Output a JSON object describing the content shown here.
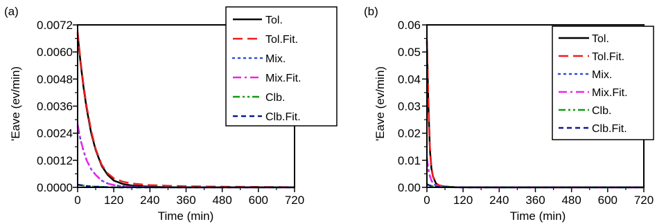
{
  "chart_data": [
    {
      "type": "line",
      "panel_label": "(a)",
      "xlabel": "Time (min)",
      "ylabel": "'Eave (ev/min)",
      "xlim": [
        0,
        720
      ],
      "ylim": [
        0,
        0.0072
      ],
      "x_ticks": [
        "0",
        "120",
        "240",
        "360",
        "480",
        "600",
        "720"
      ],
      "y_ticks": [
        "0.0000",
        "0.0012",
        "0.0024",
        "0.0036",
        "0.0048",
        "0.0060",
        "0.0072"
      ],
      "legend_position": "top-right",
      "series": [
        {
          "name": "Tol.",
          "color": "#000000",
          "dash": "solid",
          "x": [
            0,
            10,
            20,
            30,
            45,
            60,
            80,
            100,
            120,
            150,
            180,
            240,
            300,
            360,
            480,
            600,
            720
          ],
          "y": [
            0.0068,
            0.0055,
            0.0044,
            0.0035,
            0.0024,
            0.00165,
            0.00095,
            0.00055,
            0.0003,
            0.00015,
            8e-05,
            3e-05,
            1e-05,
            0.0,
            0.0,
            0.0,
            0.0
          ]
        },
        {
          "name": "Tol.Fit.",
          "color": "#ee1c1c",
          "dash": "long-dash",
          "x": [
            0,
            10,
            20,
            30,
            45,
            60,
            80,
            100,
            120,
            150,
            180,
            240,
            300,
            360,
            480,
            600,
            720
          ],
          "y": [
            0.0069,
            0.0056,
            0.0045,
            0.0036,
            0.0025,
            0.0017,
            0.001,
            0.00062,
            0.0004,
            0.00025,
            0.00017,
            0.0001,
            7e-05,
            5e-05,
            3e-05,
            2e-05,
            1e-05
          ]
        },
        {
          "name": "Mix.",
          "color": "#2a4bd8",
          "dash": "dot",
          "x": [
            0,
            10,
            20,
            30,
            45,
            60,
            80,
            100,
            120,
            150,
            180,
            240,
            300,
            360,
            480,
            600,
            720
          ],
          "y": [
            0.0027,
            0.0021,
            0.0016,
            0.0012,
            0.0008,
            0.00055,
            0.0003,
            0.00017,
            0.0001,
            5e-05,
            3e-05,
            1e-05,
            0.0,
            0.0,
            0.0,
            0.0,
            0.0
          ]
        },
        {
          "name": "Mix.Fit.",
          "color": "#ee22ee",
          "dash": "dash-dot",
          "x": [
            0,
            10,
            20,
            30,
            45,
            60,
            80,
            100,
            120,
            150,
            180,
            240,
            300,
            360,
            480,
            600,
            720
          ],
          "y": [
            0.0028,
            0.0021,
            0.0016,
            0.0012,
            0.0008,
            0.00055,
            0.0003,
            0.00017,
            0.0001,
            5e-05,
            3e-05,
            1e-05,
            0.0,
            0.0,
            0.0,
            0.0,
            0.0
          ]
        },
        {
          "name": "Clb.",
          "color": "#119911",
          "dash": "dash-dot-dot",
          "x": [
            0,
            10,
            20,
            30,
            45,
            60,
            80,
            100,
            120,
            180,
            240,
            360,
            480,
            600,
            720
          ],
          "y": [
            0.00012,
            0.0001,
            8e-05,
            6e-05,
            4e-05,
            3e-05,
            2e-05,
            1e-05,
            0.0,
            0.0,
            0.0,
            0.0,
            0.0,
            0.0,
            0.0
          ]
        },
        {
          "name": "Clb.Fit.",
          "color": "#0b1a8c",
          "dash": "short-dash",
          "x": [
            0,
            10,
            20,
            30,
            45,
            60,
            80,
            100,
            120,
            180,
            240,
            360,
            480,
            600,
            720
          ],
          "y": [
            0.00012,
            0.0001,
            8e-05,
            6e-05,
            4e-05,
            3e-05,
            2e-05,
            1e-05,
            0.0,
            0.0,
            0.0,
            0.0,
            0.0,
            0.0,
            0.0
          ]
        }
      ]
    },
    {
      "type": "line",
      "panel_label": "(b)",
      "xlabel": "Time (min)",
      "ylabel": "'Eave (ev/min)",
      "xlim": [
        0,
        720
      ],
      "ylim": [
        0,
        0.06
      ],
      "x_ticks": [
        "0",
        "120",
        "240",
        "360",
        "480",
        "600",
        "720"
      ],
      "y_ticks": [
        "0.00",
        "0.01",
        "0.02",
        "0.03",
        "0.04",
        "0.05",
        "0.06"
      ],
      "legend_position": "top-right",
      "series": [
        {
          "name": "Tol.",
          "color": "#000000",
          "dash": "solid",
          "x": [
            0,
            2,
            4,
            6,
            8,
            10,
            15,
            20,
            30,
            40,
            60,
            90,
            120,
            240,
            360,
            480,
            600,
            720
          ],
          "y": [
            0.054,
            0.044,
            0.035,
            0.027,
            0.02,
            0.014,
            0.007,
            0.004,
            0.0015,
            0.0007,
            0.0003,
            0.0001,
            5e-05,
            0.0,
            0.0,
            0.0,
            0.0,
            0.0
          ]
        },
        {
          "name": "Tol.Fit.",
          "color": "#ee1c1c",
          "dash": "long-dash",
          "x": [
            0,
            2,
            4,
            6,
            8,
            10,
            15,
            20,
            30,
            40,
            60,
            90,
            120,
            240,
            360,
            480,
            600,
            720
          ],
          "y": [
            0.0545,
            0.045,
            0.036,
            0.028,
            0.021,
            0.015,
            0.0075,
            0.0042,
            0.0016,
            0.0008,
            0.0003,
            0.0001,
            5e-05,
            0.0,
            0.0,
            0.0,
            0.0,
            0.0
          ]
        },
        {
          "name": "Mix.",
          "color": "#2a4bd8",
          "dash": "dot",
          "x": [
            0,
            3,
            6,
            10,
            15,
            20,
            30,
            40,
            60,
            120,
            240,
            720
          ],
          "y": [
            0.0105,
            0.008,
            0.006,
            0.004,
            0.0025,
            0.0015,
            0.0007,
            0.0003,
            0.0001,
            0.0,
            0.0,
            0.0
          ]
        },
        {
          "name": "Mix.Fit.",
          "color": "#ee22ee",
          "dash": "dash-dot",
          "x": [
            0,
            3,
            6,
            10,
            15,
            20,
            30,
            40,
            60,
            120,
            240,
            720
          ],
          "y": [
            0.011,
            0.0085,
            0.0063,
            0.0042,
            0.0026,
            0.0016,
            0.0007,
            0.0003,
            0.0001,
            0.0,
            0.0,
            0.0
          ]
        },
        {
          "name": "Clb.",
          "color": "#119911",
          "dash": "dash-dot-dot",
          "x": [
            0,
            5,
            10,
            20,
            40,
            80,
            120,
            240,
            720
          ],
          "y": [
            0.0012,
            0.0009,
            0.0007,
            0.0004,
            0.0002,
            5e-05,
            0.0,
            0.0,
            0.0
          ]
        },
        {
          "name": "Clb.Fit.",
          "color": "#0b1a8c",
          "dash": "short-dash",
          "x": [
            0,
            5,
            10,
            20,
            40,
            80,
            120,
            240,
            720
          ],
          "y": [
            0.0012,
            0.0009,
            0.0007,
            0.0004,
            0.0002,
            5e-05,
            0.0,
            0.0,
            0.0
          ]
        }
      ]
    }
  ]
}
